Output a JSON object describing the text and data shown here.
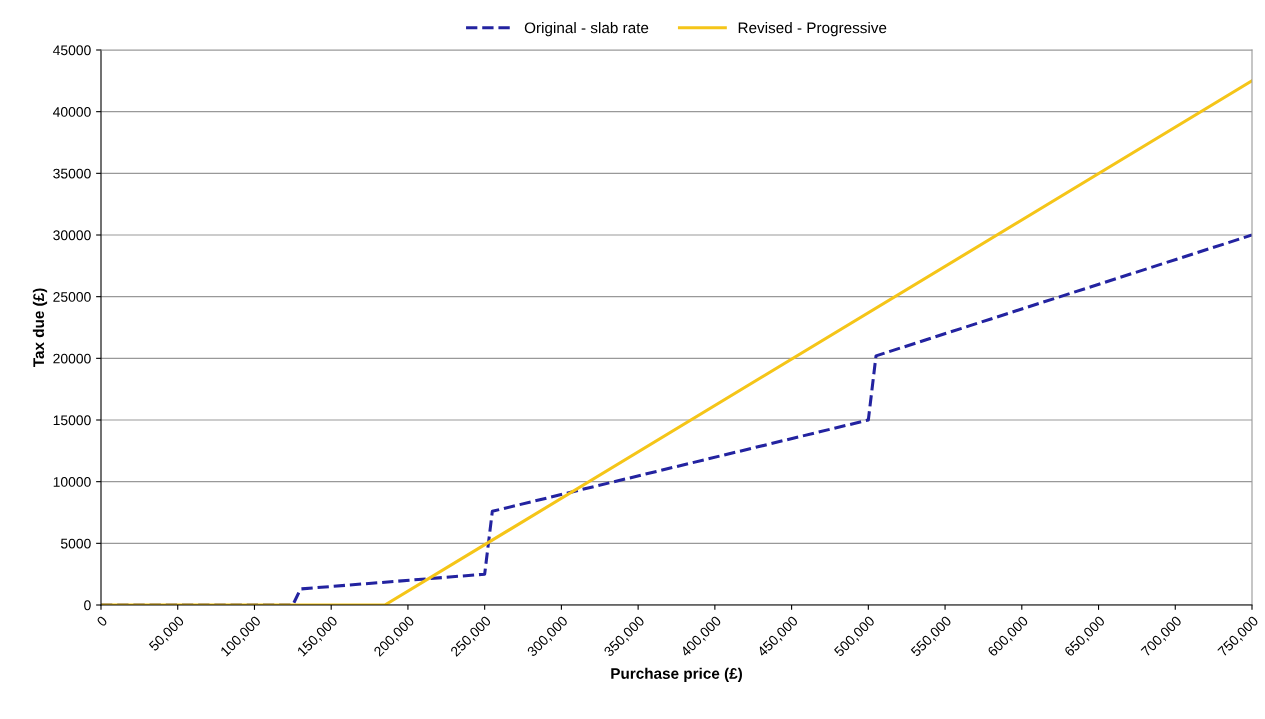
{
  "chart_data": {
    "type": "line",
    "xlabel": "Purchase price (£)",
    "ylabel": "Tax due (£)",
    "series": [
      {
        "name": "Original - slab rate",
        "color": "#2323a0",
        "line_style": "dashed",
        "x": [
          0,
          125000,
          130000,
          250000,
          255000,
          500000,
          505000,
          750000
        ],
        "values": [
          0,
          0,
          1300,
          2500,
          7600,
          15000,
          20200,
          30000
        ]
      },
      {
        "name": "Revised - Progressive",
        "color": "#f5c518",
        "line_style": "solid",
        "x": [
          0,
          185000,
          750000
        ],
        "values": [
          0,
          0,
          42500
        ]
      }
    ],
    "xlim": [
      0,
      750000
    ],
    "xticks": [
      {
        "value": 0,
        "label": "0"
      },
      {
        "value": 50000,
        "label": "50,000"
      },
      {
        "value": 100000,
        "label": "100,000"
      },
      {
        "value": 150000,
        "label": "150,000"
      },
      {
        "value": 200000,
        "label": "200,000"
      },
      {
        "value": 250000,
        "label": "250,000"
      },
      {
        "value": 300000,
        "label": "300,000"
      },
      {
        "value": 350000,
        "label": "350,000"
      },
      {
        "value": 400000,
        "label": "400,000"
      },
      {
        "value": 450000,
        "label": "450,000"
      },
      {
        "value": 500000,
        "label": "500,000"
      },
      {
        "value": 550000,
        "label": "550,000"
      },
      {
        "value": 600000,
        "label": "600,000"
      },
      {
        "value": 650000,
        "label": "650,000"
      },
      {
        "value": 700000,
        "label": "700,000"
      },
      {
        "value": 750000,
        "label": "750,000"
      }
    ],
    "ylim": [
      0,
      45000
    ],
    "yticks": [
      0,
      5000,
      10000,
      15000,
      20000,
      25000,
      30000,
      35000,
      40000,
      45000
    ],
    "grid": "y",
    "legend": "top",
    "marker": "none"
  }
}
